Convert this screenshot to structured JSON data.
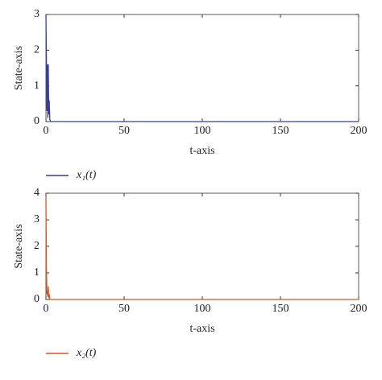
{
  "chart_data": [
    {
      "type": "line",
      "xlabel": "t-axis",
      "ylabel": "State-axis",
      "x": [
        0,
        0.3,
        0.6,
        0.9,
        1.2,
        1.5,
        1.8,
        2.1,
        2.5,
        3,
        5,
        200
      ],
      "series": [
        {
          "name": "x₁(t)",
          "color": "#3b3b9a",
          "values": [
            3,
            1.8,
            0.3,
            1.6,
            0.1,
            1.6,
            0.2,
            0.6,
            0.05,
            0,
            0,
            0
          ]
        }
      ],
      "xlim": [
        0,
        200
      ],
      "xticks": [
        0,
        50,
        100,
        150,
        200
      ],
      "ylim": [
        0,
        3
      ],
      "yticks": [
        0,
        1,
        2,
        3
      ]
    },
    {
      "type": "line",
      "xlabel": "t-axis",
      "ylabel": "State-axis",
      "x": [
        0,
        0.3,
        0.6,
        0.9,
        1.2,
        1.5,
        1.8,
        2.1,
        2.5,
        3,
        5,
        200
      ],
      "series": [
        {
          "name": "x₂(t)",
          "color": "#d9541e",
          "values": [
            3.8,
            1.2,
            0.2,
            0.3,
            0.1,
            0.5,
            0.05,
            0.2,
            0,
            0,
            0,
            0
          ]
        }
      ],
      "xlim": [
        0,
        200
      ],
      "xticks": [
        0,
        50,
        100,
        150,
        200
      ],
      "ylim": [
        0,
        4
      ],
      "yticks": [
        0,
        1,
        2,
        3,
        4
      ]
    }
  ]
}
